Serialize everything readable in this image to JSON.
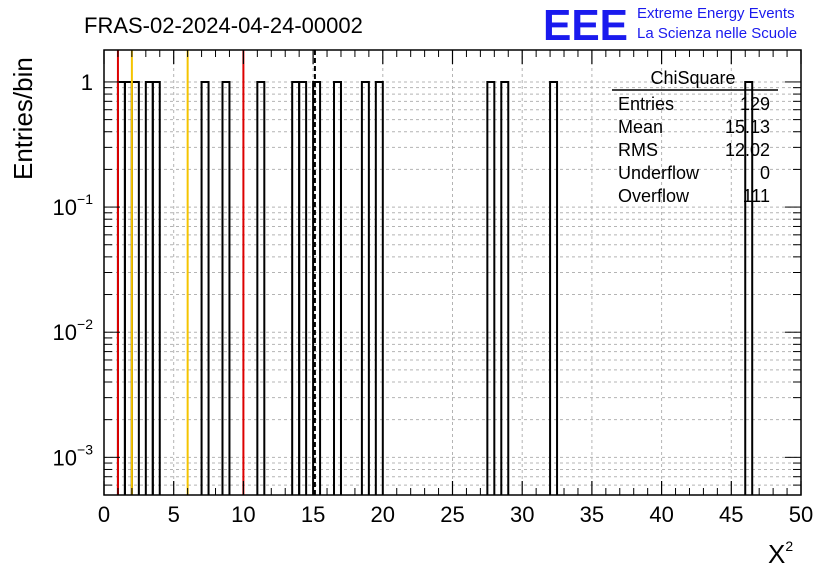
{
  "chart_data": {
    "type": "bar",
    "title": "FRAS-02-2024-04-24-00002",
    "xlabel": "X",
    "xlabel_sup": "2",
    "ylabel": "Entries/bin",
    "xlim": [
      0,
      50
    ],
    "ylim": [
      0.0005,
      1.8
    ],
    "log_y": true,
    "grid": true,
    "x_ticks": [
      0,
      5,
      10,
      15,
      20,
      25,
      30,
      35,
      40,
      45,
      50
    ],
    "x_tick_labels": [
      "0",
      "5",
      "10",
      "15",
      "20",
      "25",
      "30",
      "35",
      "40",
      "45",
      "50"
    ],
    "y_ticks": [
      {
        "value": 1,
        "base": "1",
        "exp": ""
      },
      {
        "value": 0.1,
        "base": "10",
        "exp": "−1"
      },
      {
        "value": 0.01,
        "base": "10",
        "exp": "−2"
      },
      {
        "value": 0.001,
        "base": "10",
        "exp": "−3"
      }
    ],
    "bin_width": 0.5,
    "bins": [
      {
        "x": 1.0,
        "value": 1
      },
      {
        "x": 1.5,
        "value": 1
      },
      {
        "x": 2.0,
        "value": 1
      },
      {
        "x": 3.0,
        "value": 1
      },
      {
        "x": 3.5,
        "value": 1
      },
      {
        "x": 7.0,
        "value": 1
      },
      {
        "x": 8.5,
        "value": 1
      },
      {
        "x": 11.0,
        "value": 1
      },
      {
        "x": 13.5,
        "value": 1
      },
      {
        "x": 14.0,
        "value": 1
      },
      {
        "x": 15.0,
        "value": 1
      },
      {
        "x": 16.5,
        "value": 1
      },
      {
        "x": 18.5,
        "value": 1
      },
      {
        "x": 19.5,
        "value": 1
      },
      {
        "x": 27.5,
        "value": 1
      },
      {
        "x": 28.5,
        "value": 1
      },
      {
        "x": 32.0,
        "value": 1
      },
      {
        "x": 46.0,
        "value": 1
      }
    ],
    "vertical_lines": [
      {
        "x": 1.0,
        "color": "#dd0000",
        "style": "solid"
      },
      {
        "x": 2.0,
        "color": "#f5c400",
        "style": "solid"
      },
      {
        "x": 6.0,
        "color": "#f5c400",
        "style": "solid"
      },
      {
        "x": 10.0,
        "color": "#dd0000",
        "style": "solid"
      },
      {
        "x": 15.13,
        "color": "#000000",
        "style": "dashed"
      }
    ],
    "stats_box": {
      "title": "ChiSquare",
      "rows": [
        {
          "label": "Entries",
          "value": "129"
        },
        {
          "label": "Mean",
          "value": "15.13"
        },
        {
          "label": "RMS",
          "value": "12.02"
        },
        {
          "label": "Underflow",
          "value": "0"
        },
        {
          "label": "Overflow",
          "value": "111"
        }
      ]
    }
  },
  "logo": {
    "mark": "EEE",
    "line1": "Extreme Energy Events",
    "line2": "La Scienza nelle Scuole",
    "color": "#1a1aee"
  }
}
